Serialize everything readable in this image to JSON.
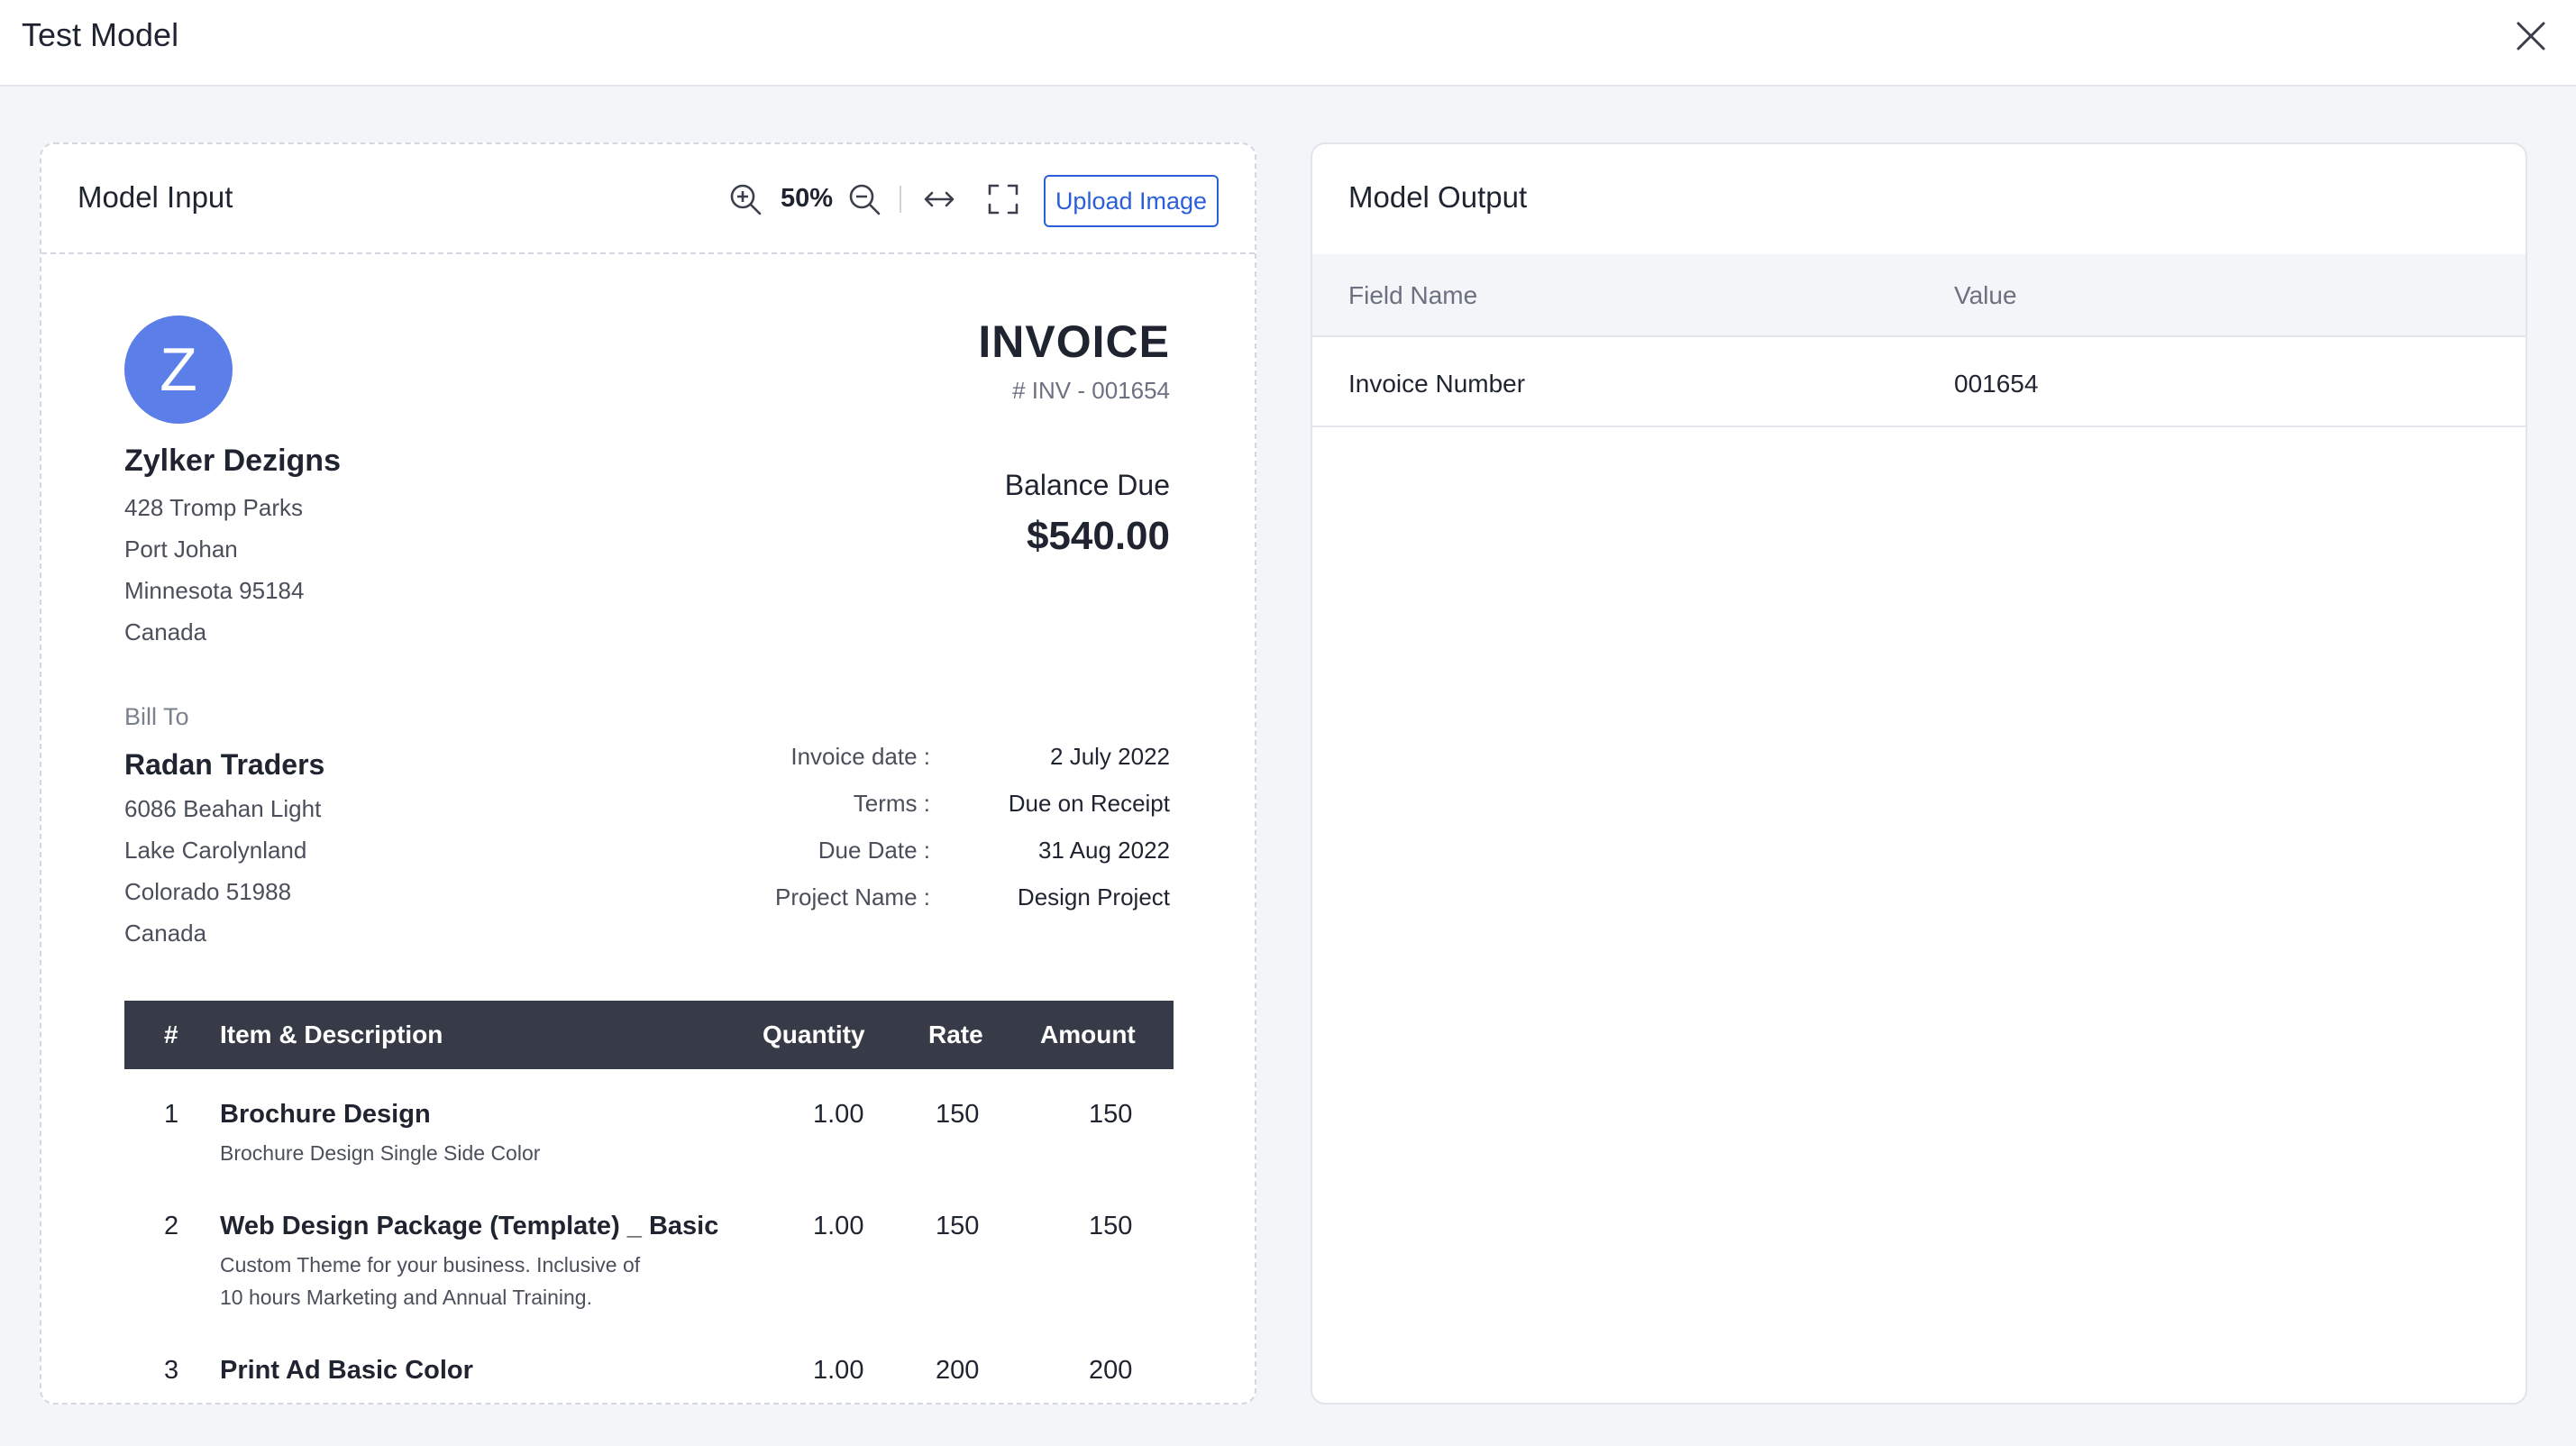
{
  "header": {
    "title": "Test Model"
  },
  "input_panel": {
    "title": "Model Input",
    "zoom": "50%",
    "upload_label": "Upload Image",
    "icons": [
      "zoom-in-icon",
      "zoom-out-icon",
      "fit-width-icon",
      "fullscreen-icon"
    ]
  },
  "invoice": {
    "logo_letter": "Z",
    "company": "Zylker Dezigns",
    "company_address": [
      "428 Tromp Parks",
      "Port Johan",
      "Minnesota 95184",
      "Canada"
    ],
    "title": "INVOICE",
    "number": "# INV - 001654",
    "balance_label": "Balance Due",
    "balance_amount": "$540.00",
    "bill_to_label": "Bill To",
    "client": "Radan Traders",
    "client_address": [
      "6086 Beahan Light",
      "Lake Carolynland",
      "Colorado 51988",
      "Canada"
    ],
    "meta": [
      {
        "label": "Invoice date :",
        "value": "2 July 2022"
      },
      {
        "label": "Terms :",
        "value": "Due on Receipt"
      },
      {
        "label": "Due Date :",
        "value": "31 Aug 2022"
      },
      {
        "label": "Project Name :",
        "value": "Design Project"
      }
    ],
    "columns": {
      "num": "#",
      "item": "Item  & Description",
      "qty": "Quantity",
      "rate": "Rate",
      "amount": "Amount"
    },
    "items": [
      {
        "num": "1",
        "name": "Brochure Design",
        "desc": [
          "Brochure Design Single Side Color"
        ],
        "qty": "1.00",
        "rate": "150",
        "amount": "150"
      },
      {
        "num": "2",
        "name": "Web Design Package (Template) _ Basic",
        "desc": [
          "Custom Theme for your business. Inclusive of",
          "10 hours Marketing and Annual Training."
        ],
        "qty": "1.00",
        "rate": "150",
        "amount": "150"
      },
      {
        "num": "3",
        "name": "Print Ad Basic Color",
        "desc": [],
        "qty": "1.00",
        "rate": "200",
        "amount": "200"
      }
    ]
  },
  "output_panel": {
    "title": "Model Output",
    "columns": {
      "field": "Field Name",
      "value": "Value"
    },
    "rows": [
      {
        "field": "Invoice Number",
        "value": "001654"
      }
    ]
  },
  "colors": {
    "accent": "#2b5fd9",
    "logo": "#5b7ee8",
    "table_header": "#373b48"
  }
}
